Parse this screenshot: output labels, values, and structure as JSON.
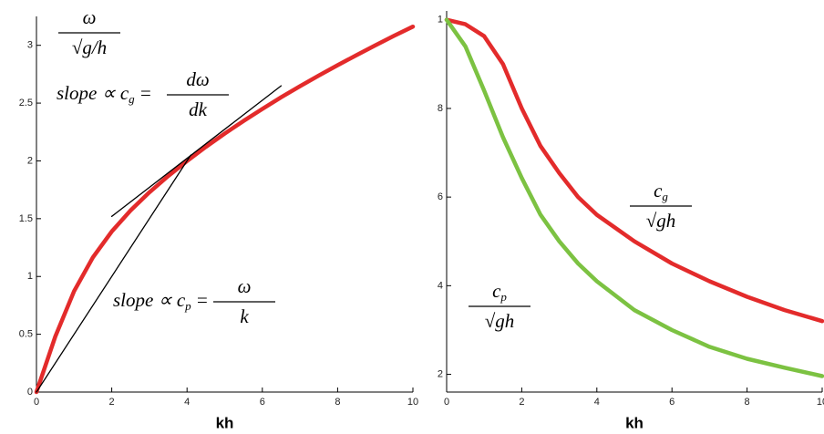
{
  "chart_data": [
    {
      "type": "line",
      "xlabel": "kh",
      "xlim": [
        0,
        10
      ],
      "ylim": [
        0,
        3.25
      ],
      "xticks": [
        0,
        2,
        4,
        6,
        8,
        10
      ],
      "yticks": [
        0,
        0.5,
        1,
        1.5,
        2,
        2.5,
        3
      ],
      "series": [
        {
          "color": "#e32b2b",
          "x": [
            0,
            0.5,
            1,
            1.5,
            2,
            2.5,
            3,
            3.5,
            4,
            4.5,
            5,
            5.5,
            6,
            6.5,
            7,
            7.5,
            8,
            8.5,
            9,
            9.5,
            10
          ],
          "values": [
            0,
            0.481,
            0.873,
            1.165,
            1.389,
            1.571,
            1.728,
            1.869,
            1.999,
            2.121,
            2.236,
            2.345,
            2.449,
            2.55,
            2.646,
            2.739,
            2.828,
            2.915,
            3.0,
            3.082,
            3.162
          ]
        },
        {
          "color": "#000000",
          "x": [
            2,
            6.5
          ],
          "values": [
            1.52,
            2.65
          ]
        },
        {
          "color": "#000000",
          "x": [
            0,
            4.1
          ],
          "values": [
            0,
            2.05
          ]
        }
      ],
      "annotations": [
        {
          "num": "ω",
          "den": "√g/h"
        },
        {
          "text": "slope ∝ c",
          "sub": "g",
          "rel": "=",
          "num": "dω",
          "den": "dk"
        },
        {
          "text": "slope ∝ c",
          "sub": "p",
          "rel": "=",
          "num": "ω",
          "den": "k"
        }
      ]
    },
    {
      "type": "line",
      "xlabel": "kh",
      "xlim": [
        0,
        10
      ],
      "ylim": [
        0.16,
        1.02
      ],
      "xticks": [
        0,
        2,
        4,
        6,
        8,
        10
      ],
      "yticks": [
        {
          "value": 0.2,
          "label": "2"
        },
        {
          "value": 0.4,
          "label": "4"
        },
        {
          "value": 0.6,
          "label": "6"
        },
        {
          "value": 0.8,
          "label": "8"
        },
        1
      ],
      "series": [
        {
          "color": "#e32b2b",
          "x": [
            0,
            0.5,
            1,
            1.5,
            2,
            2.5,
            3,
            3.5,
            4,
            5,
            6,
            7,
            8,
            9,
            10
          ],
          "values": [
            1.0,
            0.99,
            0.963,
            0.9,
            0.8,
            0.715,
            0.654,
            0.6,
            0.56,
            0.5,
            0.45,
            0.41,
            0.375,
            0.345,
            0.32
          ]
        },
        {
          "color": "#7cc242",
          "x": [
            0,
            0.5,
            1,
            1.5,
            2,
            2.5,
            3,
            3.5,
            4,
            5,
            6,
            7,
            8,
            9,
            10
          ],
          "values": [
            1.0,
            0.94,
            0.84,
            0.735,
            0.643,
            0.56,
            0.5,
            0.45,
            0.41,
            0.345,
            0.3,
            0.262,
            0.235,
            0.215,
            0.196
          ]
        }
      ],
      "annotations": [
        {
          "num": "c",
          "num_sub": "g",
          "den": "√gh"
        },
        {
          "num": "c",
          "num_sub": "p",
          "den": "√gh"
        }
      ]
    }
  ]
}
